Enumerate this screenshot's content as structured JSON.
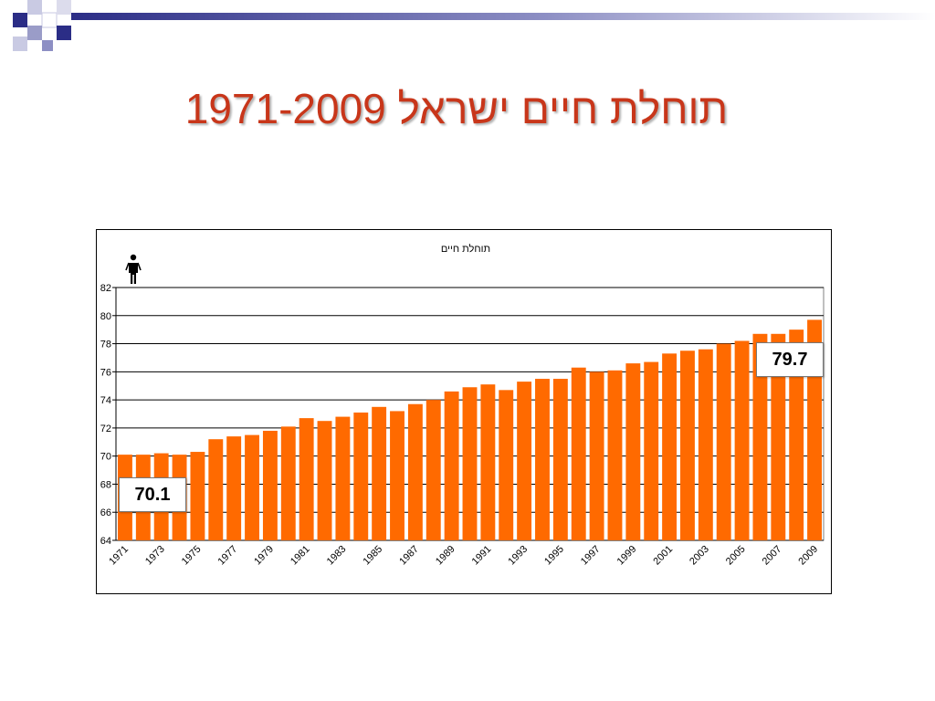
{
  "slide": {
    "title": "תוחלת חיים ישראל 1971-2009"
  },
  "icons": {
    "person": "person-icon"
  },
  "colors": {
    "bar": "#ff6a00",
    "title": "#c8361a",
    "deco_dark": "#2b2d86",
    "deco_light": "#9a9cc8"
  },
  "chart_data": {
    "type": "bar",
    "title": "תוחלת חיים",
    "xlabel": "",
    "ylabel": "",
    "ylim": [
      64,
      82
    ],
    "yticks": [
      64,
      66,
      68,
      70,
      72,
      74,
      76,
      78,
      80,
      82
    ],
    "grid": true,
    "categories": [
      "1971",
      "1972",
      "1973",
      "1974",
      "1975",
      "1976",
      "1977",
      "1978",
      "1979",
      "1980",
      "1981",
      "1982",
      "1983",
      "1984",
      "1985",
      "1986",
      "1987",
      "1988",
      "1989",
      "1990",
      "1991",
      "1992",
      "1993",
      "1994",
      "1995",
      "1996",
      "1997",
      "1998",
      "1999",
      "2000",
      "2001",
      "2002",
      "2003",
      "2004",
      "2005",
      "2006",
      "2007",
      "2008",
      "2009"
    ],
    "x_tick_labels": [
      "1971",
      "1973",
      "1975",
      "1977",
      "1979",
      "1981",
      "1983",
      "1985",
      "1987",
      "1989",
      "1991",
      "1993",
      "1995",
      "1997",
      "1999",
      "2001",
      "2003",
      "2005",
      "2007",
      "2009"
    ],
    "values": [
      70.1,
      70.1,
      70.2,
      70.1,
      70.3,
      71.2,
      71.4,
      71.5,
      71.8,
      72.1,
      72.7,
      72.5,
      72.8,
      73.1,
      73.5,
      73.2,
      73.7,
      74.0,
      74.6,
      74.9,
      75.1,
      74.7,
      75.3,
      75.5,
      75.5,
      76.3,
      76.0,
      76.1,
      76.6,
      76.7,
      77.3,
      77.5,
      77.6,
      78.0,
      78.2,
      78.7,
      78.7,
      79.0,
      79.7
    ],
    "callouts": [
      {
        "label": "70.1",
        "category": "1971"
      },
      {
        "label": "79.7",
        "category": "2009"
      }
    ]
  }
}
